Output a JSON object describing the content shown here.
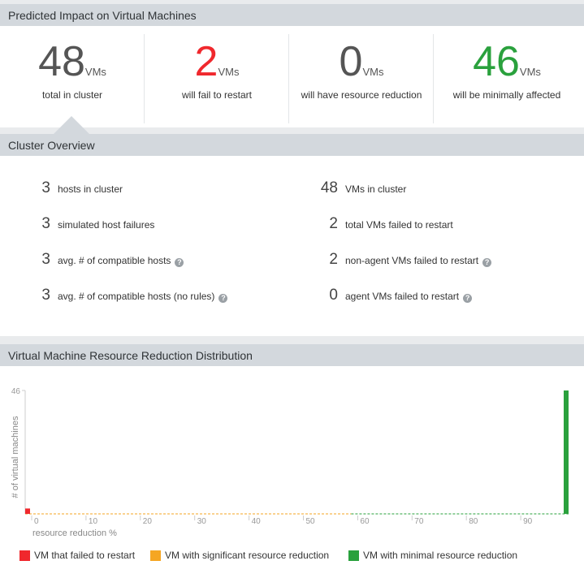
{
  "impact": {
    "title": "Predicted Impact on Virtual Machines",
    "unit": "VMs",
    "metrics": [
      {
        "value": "48",
        "desc": "total in cluster",
        "color": "#555555"
      },
      {
        "value": "2",
        "desc": "will fail to restart",
        "color": "#f0282d"
      },
      {
        "value": "0",
        "desc": "will have resource reduction",
        "color": "#555555"
      },
      {
        "value": "46",
        "desc": "will be minimally affected",
        "color": "#2aa13d"
      }
    ]
  },
  "overview": {
    "title": "Cluster Overview",
    "left": [
      {
        "value": "3",
        "label": "hosts in cluster",
        "help": false
      },
      {
        "value": "3",
        "label": "simulated host failures",
        "help": false
      },
      {
        "value": "3",
        "label": "avg. # of compatible hosts",
        "help": true
      },
      {
        "value": "3",
        "label": "avg. # of compatible hosts (no rules)",
        "help": true
      }
    ],
    "right": [
      {
        "value": "48",
        "label": "VMs in cluster",
        "help": false
      },
      {
        "value": "2",
        "label": "total VMs failed to restart",
        "help": false
      },
      {
        "value": "2",
        "label": "non-agent VMs failed to restart",
        "help": true
      },
      {
        "value": "0",
        "label": "agent VMs failed to restart",
        "help": true
      }
    ],
    "help_icon": "question-circle-icon"
  },
  "distribution": {
    "title": "Virtual Machine Resource Reduction Distribution",
    "legend": [
      {
        "label": "VM that failed to restart",
        "color": "#f0282d"
      },
      {
        "label": "VM with significant resource reduction",
        "color": "#f5a623"
      },
      {
        "label": "VM with minimal resource reduction",
        "color": "#2aa13d"
      }
    ]
  },
  "chart_data": {
    "type": "bar",
    "xlabel": "resource reduction %",
    "ylabel": "# of virtual machines",
    "xlim": [
      0,
      100
    ],
    "ylim": [
      0,
      46
    ],
    "xticks": [
      0,
      10,
      20,
      30,
      40,
      50,
      60,
      70,
      80,
      90
    ],
    "yticks": [
      46
    ],
    "bars": [
      {
        "x": 0,
        "value": 2,
        "series": "VM that failed to restart",
        "color": "#f0282d"
      },
      {
        "x": 100,
        "value": 46,
        "series": "VM with minimal resource reduction",
        "color": "#2aa13d"
      }
    ],
    "baseline_segments": [
      {
        "from": 0,
        "to": 60,
        "color": "#f5a623"
      },
      {
        "from": 60,
        "to": 100,
        "color": "#2aa13d"
      }
    ]
  }
}
